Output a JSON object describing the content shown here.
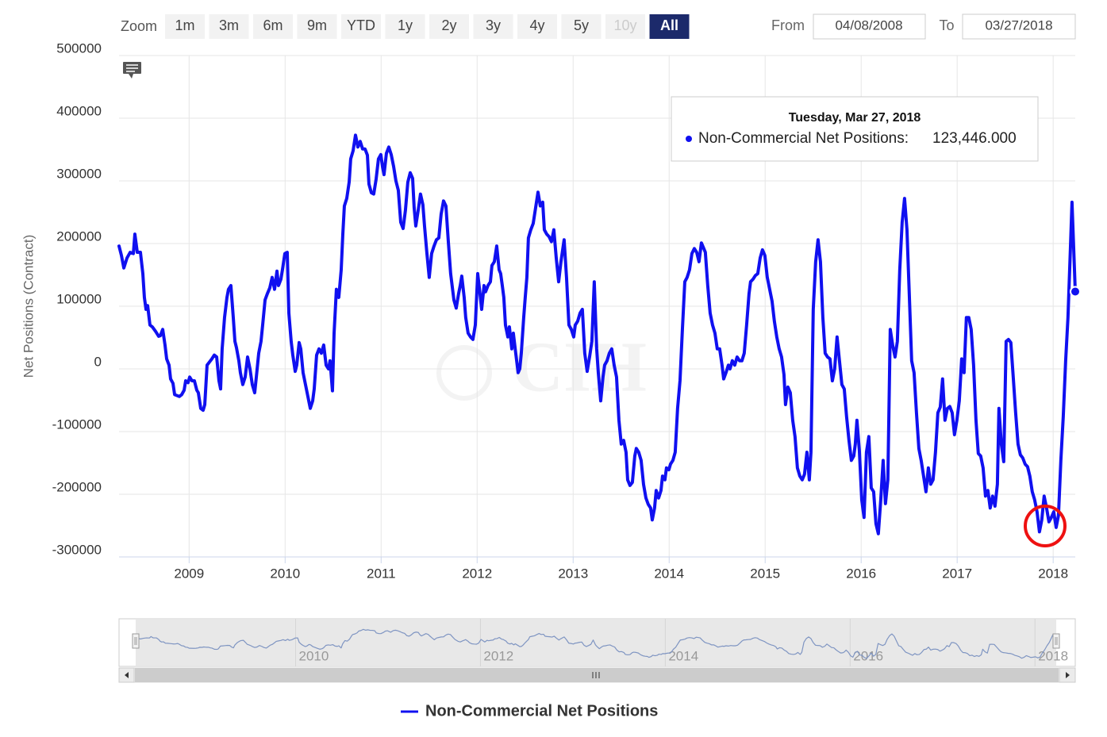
{
  "chart_data": {
    "type": "line",
    "y_axis_title": "Net Positions (Contract)",
    "watermark": "CIH",
    "range_selector": {
      "label": "Zoom",
      "buttons": [
        "1m",
        "3m",
        "6m",
        "9m",
        "YTD",
        "1y",
        "2y",
        "3y",
        "4y",
        "5y",
        "10y",
        "All"
      ],
      "selected_index": 11,
      "disabled_index": 10
    },
    "date_range": {
      "from_label": "From",
      "from": "04/08/2008",
      "to_label": "To",
      "to": "03/27/2018"
    },
    "tooltip": {
      "title": "Tuesday, Mar 27, 2018",
      "label": "Non-Commercial Net Positions:",
      "value": "123,446.000"
    },
    "xlim": [
      2008.27,
      2018.23
    ],
    "xticks": [
      2009,
      2010,
      2011,
      2012,
      2013,
      2014,
      2015,
      2016,
      2017,
      2018
    ],
    "ylim": [
      -300000,
      500000
    ],
    "yticks": [
      -300000,
      -200000,
      -100000,
      0,
      100000,
      200000,
      300000,
      400000,
      500000
    ],
    "grid": true,
    "legend": "bottom",
    "navigator": {
      "xticks": [
        2010,
        2012,
        2014,
        2016,
        2018
      ],
      "color": "#7f95c2"
    },
    "x": [
      2008.27,
      2008.295,
      2008.32,
      2008.353,
      2008.386,
      2008.419,
      2008.435,
      2008.46,
      2008.493,
      2008.518,
      2008.534,
      2008.551,
      2008.568,
      2008.592,
      2008.617,
      2008.65,
      2008.683,
      2008.7,
      2008.725,
      2008.749,
      2008.766,
      2008.791,
      2008.807,
      2008.832,
      2008.849,
      2008.865,
      2008.898,
      2008.923,
      2008.948,
      2008.964,
      2008.989,
      2009.006,
      2009.03,
      2009.055,
      2009.08,
      2009.096,
      2009.121,
      2009.146,
      2009.163,
      2009.187,
      2009.212,
      2009.237,
      2009.262,
      2009.287,
      2009.311,
      2009.328,
      2009.344,
      2009.369,
      2009.394,
      2009.41,
      2009.435,
      2009.46,
      2009.477,
      2009.493,
      2009.518,
      2009.534,
      2009.559,
      2009.584,
      2009.609,
      2009.634,
      2009.658,
      2009.683,
      2009.7,
      2009.725,
      2009.749,
      2009.766,
      2009.791,
      2009.815,
      2009.84,
      2009.865,
      2009.89,
      2009.915,
      2009.931,
      2009.956,
      2009.972,
      2009.997,
      2010.022,
      2010.039,
      2010.063,
      2010.08,
      2010.105,
      2010.121,
      2010.146,
      2010.163,
      2010.187,
      2010.212,
      2010.237,
      2010.262,
      2010.287,
      2010.303,
      2010.328,
      2010.353,
      2010.377,
      2010.402,
      2010.427,
      2010.452,
      2010.468,
      2010.493,
      2010.51,
      2010.534,
      2010.559,
      2010.584,
      2010.601,
      2010.617,
      2010.642,
      2010.667,
      2010.683,
      2010.708,
      2010.733,
      2010.758,
      2010.782,
      2010.807,
      2010.832,
      2010.857,
      2010.873,
      2010.898,
      2010.923,
      2010.948,
      2010.972,
      2010.997,
      2011.014,
      2011.03,
      2011.055,
      2011.08,
      2011.105,
      2011.13,
      2011.154,
      2011.179,
      2011.204,
      2011.229,
      2011.253,
      2011.278,
      2011.303,
      2011.328,
      2011.344,
      2011.361,
      2011.386,
      2011.41,
      2011.435,
      2011.452,
      2011.477,
      2011.501,
      2011.526,
      2011.551,
      2011.576,
      2011.601,
      2011.625,
      2011.65,
      2011.675,
      2011.7,
      2011.724,
      2011.758,
      2011.782,
      2011.807,
      2011.824,
      2011.84,
      2011.865,
      2011.881,
      2011.906,
      2011.931,
      2011.956,
      2011.981,
      2012.006,
      2012.03,
      2012.047,
      2012.072,
      2012.088,
      2012.113,
      2012.138,
      2012.154,
      2012.179,
      2012.204,
      2012.229,
      2012.245,
      2012.262,
      2012.278,
      2012.295,
      2012.32,
      2012.336,
      2012.361,
      2012.377,
      2012.402,
      2012.427,
      2012.444,
      2012.46,
      2012.485,
      2012.501,
      2012.518,
      2012.534,
      2012.559,
      2012.584,
      2012.609,
      2012.634,
      2012.658,
      2012.683,
      2012.7,
      2012.725,
      2012.749,
      2012.774,
      2012.799,
      2012.824,
      2012.849,
      2012.873,
      2012.906,
      2012.931,
      2012.956,
      2012.981,
      2013.006,
      2013.022,
      2013.047,
      2013.072,
      2013.096,
      2013.121,
      2013.146,
      2013.171,
      2013.195,
      2013.22,
      2013.245,
      2013.262,
      2013.287,
      2013.311,
      2013.328,
      2013.353,
      2013.377,
      2013.402,
      2013.427,
      2013.452,
      2013.477,
      2013.501,
      2013.526,
      2013.551,
      2013.568,
      2013.592,
      2013.617,
      2013.642,
      2013.658,
      2013.683,
      2013.708,
      2013.733,
      2013.758,
      2013.782,
      2013.807,
      2013.824,
      2013.848,
      2013.865,
      2013.89,
      2013.915,
      2013.931,
      2013.956,
      2013.972,
      2013.997,
      2014.014,
      2014.039,
      2014.063,
      2014.088,
      2014.113,
      2014.138,
      2014.163,
      2014.187,
      2014.212,
      2014.237,
      2014.262,
      2014.287,
      2014.311,
      2014.336,
      2014.361,
      2014.377,
      2014.402,
      2014.427,
      2014.452,
      2014.477,
      2014.501,
      2014.526,
      2014.551,
      2014.568,
      2014.592,
      2014.617,
      2014.634,
      2014.658,
      2014.683,
      2014.708,
      2014.733,
      2014.758,
      2014.782,
      2014.807,
      2014.832,
      2014.848,
      2014.873,
      2014.898,
      2014.923,
      2014.948,
      2014.972,
      2014.997,
      2015.022,
      2015.047,
      2015.072,
      2015.096,
      2015.121,
      2015.146,
      2015.171,
      2015.196,
      2015.212,
      2015.237,
      2015.262,
      2015.287,
      2015.311,
      2015.336,
      2015.361,
      2015.386,
      2015.41,
      2015.435,
      2015.46,
      2015.477,
      2015.501,
      2015.526,
      2015.551,
      2015.576,
      2015.601,
      2015.625,
      2015.65,
      2015.675,
      2015.7,
      2015.724,
      2015.749,
      2015.774,
      2015.799,
      2015.824,
      2015.848,
      2015.873,
      2015.898,
      2015.923,
      2015.939,
      2015.956,
      2015.981,
      2016.006,
      2016.03,
      2016.055,
      2016.08,
      2016.105,
      2016.13,
      2016.154,
      2016.179,
      2016.204,
      2016.229,
      2016.253,
      2016.278,
      2016.303,
      2016.328,
      2016.353,
      2016.377,
      2016.402,
      2016.427,
      2016.452,
      2016.477,
      2016.501,
      2016.526,
      2016.551,
      2016.576,
      2016.601,
      2016.625,
      2016.65,
      2016.675,
      2016.7,
      2016.724,
      2016.749,
      2016.774,
      2016.799,
      2016.824,
      2016.848,
      2016.873,
      2016.898,
      2016.923,
      2016.948,
      2016.972,
      2016.997,
      2017.022,
      2017.047,
      2017.072,
      2017.096,
      2017.121,
      2017.146,
      2017.171,
      2017.196,
      2017.22,
      2017.245,
      2017.27,
      2017.295,
      2017.32,
      2017.344,
      2017.369,
      2017.394,
      2017.419,
      2017.435,
      2017.46,
      2017.485,
      2017.51,
      2017.534,
      2017.559,
      2017.584,
      2017.609,
      2017.634,
      2017.658,
      2017.683,
      2017.708,
      2017.733,
      2017.757,
      2017.782,
      2017.807,
      2017.832,
      2017.857,
      2017.881,
      2017.906,
      2017.931,
      2017.956,
      2017.981,
      2018.006,
      2018.031,
      2018.055,
      2018.08,
      2018.105,
      2018.13,
      2018.154,
      2018.179,
      2018.196,
      2018.23
    ],
    "series": [
      {
        "name": "Non-Commercial Net Positions",
        "color": "#1010f0",
        "values": [
          196000,
          181000,
          161000,
          177000,
          186000,
          184000,
          215000,
          186000,
          186000,
          152000,
          114000,
          95000,
          101000,
          70000,
          67000,
          60000,
          52000,
          53000,
          63000,
          38000,
          16000,
          6000,
          -16000,
          -23000,
          -41000,
          -42000,
          -44000,
          -41000,
          -34000,
          -19000,
          -22000,
          -13000,
          -19000,
          -19000,
          -34000,
          -38000,
          -63000,
          -66000,
          -57000,
          6000,
          11000,
          16000,
          22000,
          19000,
          -19000,
          -32000,
          32000,
          82000,
          114000,
          127000,
          133000,
          82000,
          44000,
          34000,
          13000,
          -6000,
          -25000,
          -13000,
          19000,
          0,
          -25000,
          -38000,
          -13000,
          25000,
          44000,
          70000,
          110000,
          120000,
          129000,
          146000,
          127000,
          156000,
          133000,
          143000,
          158000,
          184000,
          186000,
          89000,
          44000,
          22000,
          -4000,
          6000,
          42000,
          32000,
          -6000,
          -25000,
          -44000,
          -63000,
          -51000,
          -32000,
          22000,
          32000,
          25000,
          38000,
          6000,
          0,
          13000,
          -35000,
          57000,
          127000,
          114000,
          158000,
          215000,
          260000,
          272000,
          298000,
          335000,
          348000,
          373000,
          354000,
          363000,
          351000,
          351000,
          341000,
          295000,
          281000,
          279000,
          303000,
          335000,
          342000,
          323000,
          310000,
          344000,
          354000,
          342000,
          323000,
          300000,
          285000,
          234000,
          224000,
          253000,
          298000,
          313000,
          304000,
          257000,
          228000,
          253000,
          279000,
          262000,
          228000,
          184000,
          146000,
          184000,
          196000,
          206000,
          209000,
          247000,
          268000,
          260000,
          203000,
          152000,
          110000,
          97000,
          120000,
          133000,
          148000,
          114000,
          82000,
          57000,
          51000,
          47000,
          70000,
          152000,
          120000,
          95000,
          133000,
          123000,
          133000,
          139000,
          165000,
          171000,
          196000,
          158000,
          152000,
          133000,
          114000,
          70000,
          51000,
          67000,
          32000,
          57000,
          25000,
          -6000,
          0,
          25000,
          82000,
          114000,
          146000,
          209000,
          222000,
          232000,
          257000,
          282000,
          260000,
          266000,
          222000,
          215000,
          211000,
          203000,
          222000,
          177000,
          139000,
          171000,
          206000,
          146000,
          70000,
          63000,
          51000,
          70000,
          76000,
          89000,
          95000,
          25000,
          -4000,
          19000,
          44000,
          139000,
          32000,
          -6000,
          -51000,
          -13000,
          6000,
          13000,
          25000,
          32000,
          6000,
          -13000,
          -82000,
          -120000,
          -114000,
          -133000,
          -177000,
          -186000,
          -181000,
          -139000,
          -127000,
          -133000,
          -146000,
          -184000,
          -206000,
          -216000,
          -222000,
          -241000,
          -222000,
          -194000,
          -206000,
          -194000,
          -171000,
          -177000,
          -158000,
          -161000,
          -152000,
          -146000,
          -133000,
          -63000,
          -19000,
          63000,
          139000,
          146000,
          158000,
          184000,
          192000,
          186000,
          171000,
          201000,
          192000,
          186000,
          133000,
          89000,
          70000,
          57000,
          32000,
          32000,
          6000,
          -16000,
          -6000,
          6000,
          0,
          13000,
          6000,
          19000,
          13000,
          13000,
          25000,
          70000,
          120000,
          139000,
          143000,
          149000,
          152000,
          177000,
          190000,
          181000,
          146000,
          127000,
          108000,
          76000,
          51000,
          32000,
          19000,
          -9000,
          -57000,
          -29000,
          -38000,
          -82000,
          -108000,
          -158000,
          -171000,
          -177000,
          -168000,
          -133000,
          -177000,
          -133000,
          95000,
          171000,
          206000,
          171000,
          82000,
          25000,
          19000,
          16000,
          -19000,
          0,
          51000,
          13000,
          -25000,
          -32000,
          -76000,
          -114000,
          -146000,
          -139000,
          -120000,
          -82000,
          -130000,
          -209000,
          -237000,
          -133000,
          -108000,
          -190000,
          -196000,
          -247000,
          -263000,
          -209000,
          -146000,
          -215000,
          -177000,
          63000,
          38000,
          19000,
          44000,
          158000,
          234000,
          272000,
          222000,
          120000,
          13000,
          -6000,
          -70000,
          -127000,
          -146000,
          -171000,
          -196000,
          -158000,
          -184000,
          -177000,
          -133000,
          -70000,
          -61000,
          -16000,
          -82000,
          -63000,
          -60000,
          -70000,
          -105000,
          -82000,
          -51000,
          16000,
          -6000,
          82000,
          82000,
          63000,
          6000,
          -82000,
          -135000,
          -139000,
          -158000,
          -203000,
          -194000,
          -222000,
          -203000,
          -219000,
          -184000,
          -63000,
          -120000,
          -148000,
          44000,
          47000,
          42000,
          -13000,
          -70000,
          -120000,
          -137000,
          -142000,
          -152000,
          -156000,
          -171000,
          -196000,
          -209000,
          -228000,
          -260000,
          -241000,
          -203000,
          -222000,
          -244000,
          -237000,
          -228000,
          -253000,
          -234000,
          -146000,
          -76000,
          13000,
          82000,
          190000,
          266000,
          123446
        ]
      }
    ]
  }
}
